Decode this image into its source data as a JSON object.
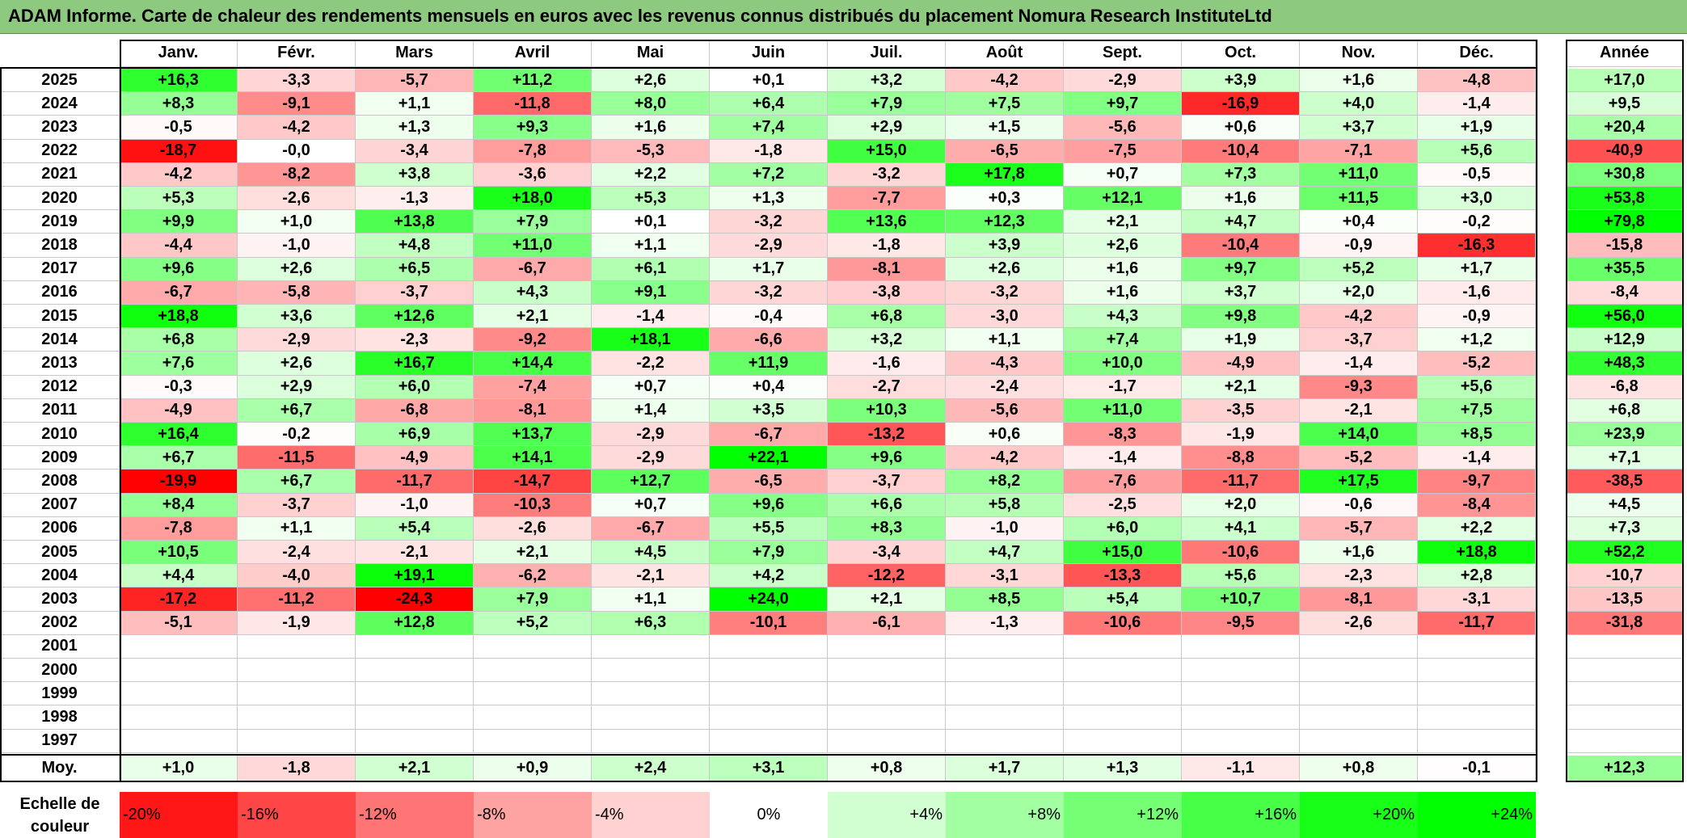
{
  "title": "ADAM Informe. Carte de chaleur des rendements mensuels en euros avec les revenus connus distribués du placement Nomura Research InstituteLtd",
  "chart_data": {
    "type": "heatmap",
    "title": "ADAM Informe. Carte de chaleur des rendements mensuels en euros avec les revenus connus distribués du placement Nomura Research InstituteLtd",
    "columns": [
      "Janv.",
      "Févr.",
      "Mars",
      "Avril",
      "Mai",
      "Juin",
      "Juil.",
      "Août",
      "Sept.",
      "Oct.",
      "Nov.",
      "Déc."
    ],
    "year_header": "Année",
    "rows": [
      {
        "year": "2025",
        "values": [
          "+16,3",
          "-3,3",
          "-5,7",
          "+11,2",
          "+2,6",
          "+0,1",
          "+3,2",
          "-4,2",
          "-2,9",
          "+3,9",
          "+1,6",
          "-4,8"
        ],
        "annual": "+17,0"
      },
      {
        "year": "2024",
        "values": [
          "+8,3",
          "-9,1",
          "+1,1",
          "-11,8",
          "+8,0",
          "+6,4",
          "+7,9",
          "+7,5",
          "+9,7",
          "-16,9",
          "+4,0",
          "-1,4"
        ],
        "annual": "+9,5"
      },
      {
        "year": "2023",
        "values": [
          "-0,5",
          "-4,2",
          "+1,3",
          "+9,3",
          "+1,6",
          "+7,4",
          "+2,9",
          "+1,5",
          "-5,6",
          "+0,6",
          "+3,7",
          "+1,9"
        ],
        "annual": "+20,4"
      },
      {
        "year": "2022",
        "values": [
          "-18,7",
          "-0,0",
          "-3,4",
          "-7,8",
          "-5,3",
          "-1,8",
          "+15,0",
          "-6,5",
          "-7,5",
          "-10,4",
          "-7,1",
          "+5,6"
        ],
        "annual": "-40,9"
      },
      {
        "year": "2021",
        "values": [
          "-4,2",
          "-8,2",
          "+3,8",
          "-3,6",
          "+2,2",
          "+7,2",
          "-3,2",
          "+17,8",
          "+0,7",
          "+7,3",
          "+11,0",
          "-0,5"
        ],
        "annual": "+30,8"
      },
      {
        "year": "2020",
        "values": [
          "+5,3",
          "-2,6",
          "-1,3",
          "+18,0",
          "+5,3",
          "+1,3",
          "-7,7",
          "+0,3",
          "+12,1",
          "+1,6",
          "+11,5",
          "+3,0"
        ],
        "annual": "+53,8"
      },
      {
        "year": "2019",
        "values": [
          "+9,9",
          "+1,0",
          "+13,8",
          "+7,9",
          "+0,1",
          "-3,2",
          "+13,6",
          "+12,3",
          "+2,1",
          "+4,7",
          "+0,4",
          "-0,2"
        ],
        "annual": "+79,8"
      },
      {
        "year": "2018",
        "values": [
          "-4,4",
          "-1,0",
          "+4,8",
          "+11,0",
          "+1,1",
          "-2,9",
          "-1,8",
          "+3,9",
          "+2,6",
          "-10,4",
          "-0,9",
          "-16,3"
        ],
        "annual": "-15,8"
      },
      {
        "year": "2017",
        "values": [
          "+9,6",
          "+2,6",
          "+6,5",
          "-6,7",
          "+6,1",
          "+1,7",
          "-8,1",
          "+2,6",
          "+1,6",
          "+9,7",
          "+5,2",
          "+1,7"
        ],
        "annual": "+35,5"
      },
      {
        "year": "2016",
        "values": [
          "-6,7",
          "-5,8",
          "-3,7",
          "+4,3",
          "+9,1",
          "-3,2",
          "-3,8",
          "-3,2",
          "+1,6",
          "+3,7",
          "+2,0",
          "-1,6"
        ],
        "annual": "-8,4"
      },
      {
        "year": "2015",
        "values": [
          "+18,8",
          "+3,6",
          "+12,6",
          "+2,1",
          "-1,4",
          "-0,4",
          "+6,8",
          "-3,0",
          "+4,3",
          "+9,8",
          "-4,2",
          "-0,9"
        ],
        "annual": "+56,0"
      },
      {
        "year": "2014",
        "values": [
          "+6,8",
          "-2,9",
          "-2,3",
          "-9,2",
          "+18,1",
          "-6,6",
          "+3,2",
          "+1,1",
          "+7,4",
          "+1,9",
          "-3,7",
          "+1,2"
        ],
        "annual": "+12,9"
      },
      {
        "year": "2013",
        "values": [
          "+7,6",
          "+2,6",
          "+16,7",
          "+14,4",
          "-2,2",
          "+11,9",
          "-1,6",
          "-4,3",
          "+10,0",
          "-4,9",
          "-1,4",
          "-5,2"
        ],
        "annual": "+48,3"
      },
      {
        "year": "2012",
        "values": [
          "-0,3",
          "+2,9",
          "+6,0",
          "-7,4",
          "+0,7",
          "+0,4",
          "-2,7",
          "-2,4",
          "-1,7",
          "+2,1",
          "-9,3",
          "+5,6"
        ],
        "annual": "-6,8"
      },
      {
        "year": "2011",
        "values": [
          "-4,9",
          "+6,7",
          "-6,8",
          "-8,1",
          "+1,4",
          "+3,5",
          "+10,3",
          "-5,6",
          "+11,0",
          "-3,5",
          "-2,1",
          "+7,5"
        ],
        "annual": "+6,8"
      },
      {
        "year": "2010",
        "values": [
          "+16,4",
          "-0,2",
          "+6,9",
          "+13,7",
          "-2,9",
          "-6,7",
          "-13,2",
          "+0,6",
          "-8,3",
          "-1,9",
          "+14,0",
          "+8,5"
        ],
        "annual": "+23,9"
      },
      {
        "year": "2009",
        "values": [
          "+6,7",
          "-11,5",
          "-4,9",
          "+14,1",
          "-2,9",
          "+22,1",
          "+9,6",
          "-4,2",
          "-1,4",
          "-8,8",
          "-5,2",
          "-1,4"
        ],
        "annual": "+7,1"
      },
      {
        "year": "2008",
        "values": [
          "-19,9",
          "+6,7",
          "-11,7",
          "-14,7",
          "+12,7",
          "-6,5",
          "-3,7",
          "+8,2",
          "-7,6",
          "-11,7",
          "+17,5",
          "-9,7"
        ],
        "annual": "-38,5"
      },
      {
        "year": "2007",
        "values": [
          "+8,4",
          "-3,7",
          "-1,0",
          "-10,3",
          "+0,7",
          "+9,6",
          "+6,6",
          "+5,8",
          "-2,5",
          "+2,0",
          "-0,6",
          "-8,4"
        ],
        "annual": "+4,5"
      },
      {
        "year": "2006",
        "values": [
          "-7,8",
          "+1,1",
          "+5,4",
          "-2,6",
          "-6,7",
          "+5,5",
          "+8,3",
          "-1,0",
          "+6,0",
          "+4,1",
          "-5,7",
          "+2,2"
        ],
        "annual": "+7,3"
      },
      {
        "year": "2005",
        "values": [
          "+10,5",
          "-2,4",
          "-2,1",
          "+2,1",
          "+4,5",
          "+7,9",
          "-3,4",
          "+4,7",
          "+15,0",
          "-10,6",
          "+1,6",
          "+18,8"
        ],
        "annual": "+52,2"
      },
      {
        "year": "2004",
        "values": [
          "+4,4",
          "-4,0",
          "+19,1",
          "-6,2",
          "-2,1",
          "+4,2",
          "-12,2",
          "-3,1",
          "-13,3",
          "+5,6",
          "-2,3",
          "+2,8"
        ],
        "annual": "-10,7"
      },
      {
        "year": "2003",
        "values": [
          "-17,2",
          "-11,2",
          "-24,3",
          "+7,9",
          "+1,1",
          "+24,0",
          "+2,1",
          "+8,5",
          "+5,4",
          "+10,7",
          "-8,1",
          "-3,1"
        ],
        "annual": "-13,5"
      },
      {
        "year": "2002",
        "values": [
          "-5,1",
          "-1,9",
          "+12,8",
          "+5,2",
          "+6,3",
          "-10,1",
          "-6,1",
          "-1,3",
          "-10,6",
          "-9,5",
          "-2,6",
          "-11,7"
        ],
        "annual": "-31,8"
      },
      {
        "year": "2001",
        "values": [
          "",
          "",
          "",
          "",
          "",
          "",
          "",
          "",
          "",
          "",
          "",
          ""
        ],
        "annual": ""
      },
      {
        "year": "2000",
        "values": [
          "",
          "",
          "",
          "",
          "",
          "",
          "",
          "",
          "",
          "",
          "",
          ""
        ],
        "annual": ""
      },
      {
        "year": "1999",
        "values": [
          "",
          "",
          "",
          "",
          "",
          "",
          "",
          "",
          "",
          "",
          "",
          ""
        ],
        "annual": ""
      },
      {
        "year": "1998",
        "values": [
          "",
          "",
          "",
          "",
          "",
          "",
          "",
          "",
          "",
          "",
          "",
          ""
        ],
        "annual": ""
      },
      {
        "year": "1997",
        "values": [
          "",
          "",
          "",
          "",
          "",
          "",
          "",
          "",
          "",
          "",
          "",
          ""
        ],
        "annual": ""
      }
    ],
    "average": {
      "label": "Moy.",
      "values": [
        "+1,0",
        "-1,8",
        "+2,1",
        "+0,9",
        "+2,4",
        "+3,1",
        "+0,8",
        "+1,7",
        "+1,3",
        "-1,1",
        "+0,8",
        "-0,1"
      ],
      "annual": "+12,3"
    },
    "scale": {
      "label_line1": "Echelle de",
      "label_line2": "couleur",
      "steps": [
        {
          "text": "-20%",
          "value": -20
        },
        {
          "text": "-16%",
          "value": -16
        },
        {
          "text": "-12%",
          "value": -12
        },
        {
          "text": "-8%",
          "value": -8
        },
        {
          "text": "-4%",
          "value": -4
        },
        {
          "text": "0%",
          "value": 0
        },
        {
          "text": "+4%",
          "value": 4
        },
        {
          "text": "+8%",
          "value": 8
        },
        {
          "text": "+12%",
          "value": 12
        },
        {
          "text": "+16%",
          "value": 16
        },
        {
          "text": "+20%",
          "value": 20
        },
        {
          "text": "+24%",
          "value": 24
        }
      ]
    },
    "colors": {
      "negative_max": "#ff0000",
      "neutral": "#ffffff",
      "positive_max": "#00ff00"
    }
  }
}
